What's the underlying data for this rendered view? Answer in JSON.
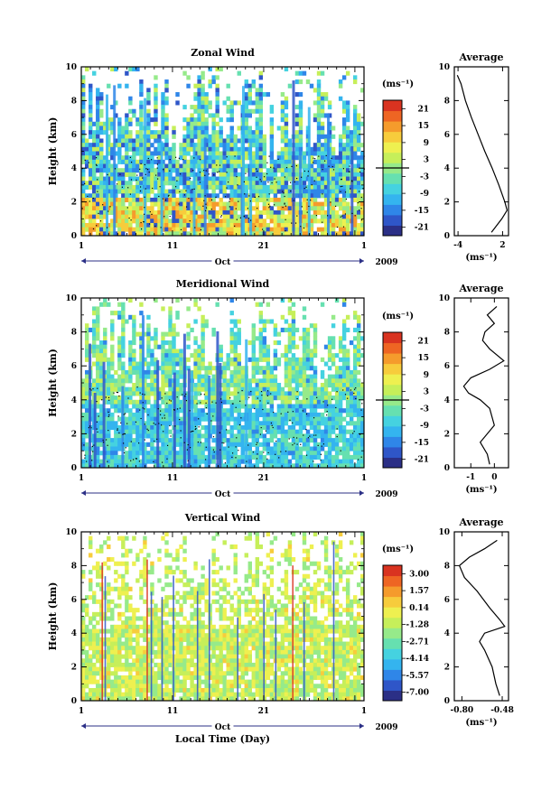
{
  "panels": [
    {
      "title": "Zonal Wind",
      "ylabel": "Height (km)",
      "yticks": [
        "0",
        "2",
        "4",
        "6",
        "8",
        "10"
      ],
      "xticks": [
        "1",
        "11",
        "21",
        "1"
      ],
      "month": "Oct",
      "year": "2009",
      "colorbar": {
        "unit": "(ms⁻¹)",
        "labels": [
          "21",
          "15",
          "9",
          "3",
          "-3",
          "-9",
          "-15",
          "-21"
        ],
        "zero_line": 0.5
      },
      "avg": {
        "title": "Average",
        "unit": "(ms⁻¹)",
        "xticks": [
          "-4",
          "2"
        ],
        "xlim": [
          -4.5,
          2.8
        ],
        "yticks": [
          "0",
          "2",
          "4",
          "6",
          "8",
          "10"
        ]
      }
    },
    {
      "title": "Meridional Wind",
      "ylabel": "Height (km)",
      "yticks": [
        "0",
        "2",
        "4",
        "6",
        "8",
        "10"
      ],
      "xticks": [
        "1",
        "11",
        "21",
        "1"
      ],
      "month": "Oct",
      "year": "2009",
      "colorbar": {
        "unit": "(ms⁻¹)",
        "labels": [
          "21",
          "15",
          "9",
          "3",
          "-3",
          "-9",
          "-15",
          "-21"
        ],
        "zero_line": 0.5
      },
      "avg": {
        "title": "Average",
        "unit": "(ms⁻¹)",
        "xticks": [
          "-1",
          "0"
        ],
        "xlim": [
          -1.7,
          0.6
        ],
        "yticks": [
          "0",
          "2",
          "4",
          "6",
          "8",
          "10"
        ]
      }
    },
    {
      "title": "Vertical Wind",
      "ylabel": "Height (km)",
      "yticks": [
        "0",
        "2",
        "4",
        "6",
        "8",
        "10"
      ],
      "xticks": [
        "1",
        "11",
        "21",
        "1"
      ],
      "month": "Oct",
      "year": "2009",
      "xlabel": "Local Time (Day)",
      "colorbar": {
        "unit": "(ms⁻¹)",
        "labels": [
          "3.00",
          "1.57",
          "0.14",
          "-1.28",
          "-2.71",
          "-4.14",
          "-5.57",
          "-7.00"
        ],
        "zero_line": null
      },
      "avg": {
        "title": "Average",
        "unit": "(ms⁻¹)",
        "xticks": [
          "-0.80",
          "-0.48"
        ],
        "xlim": [
          -0.86,
          -0.43
        ],
        "yticks": [
          "0",
          "2",
          "4",
          "6",
          "8",
          "10"
        ]
      }
    }
  ],
  "chart_data": [
    {
      "type": "heatmap",
      "title": "Zonal Wind",
      "ylabel": "Height (km)",
      "ylim": [
        0,
        10
      ],
      "xlim": [
        "1 Oct 2009",
        "1 Nov 2009"
      ],
      "colorbar_unit": "ms-1",
      "colorbar_ticks": [
        21,
        15,
        9,
        3,
        -3,
        -9,
        -15,
        -21
      ]
    },
    {
      "type": "line",
      "title": "Average",
      "xlabel": "(ms-1)",
      "ylim": [
        0,
        10
      ],
      "xlim": [
        -4.5,
        2.8
      ],
      "series": [
        {
          "x": [
            -4.1,
            -3.6,
            -3.0,
            -2.2,
            -1.3,
            -0.4,
            0.6,
            1.5,
            2.3,
            2.6,
            1.9,
            0.5
          ],
          "y": [
            9.5,
            9.0,
            8.0,
            7.0,
            6.0,
            5.0,
            4.0,
            3.0,
            2.0,
            1.5,
            1.0,
            0.2
          ]
        }
      ]
    },
    {
      "type": "heatmap",
      "title": "Meridional Wind",
      "ylabel": "Height (km)",
      "ylim": [
        0,
        10
      ],
      "xlim": [
        "1 Oct 2009",
        "1 Nov 2009"
      ],
      "colorbar_unit": "ms-1",
      "colorbar_ticks": [
        21,
        15,
        9,
        3,
        -3,
        -9,
        -15,
        -21
      ]
    },
    {
      "type": "line",
      "title": "Average",
      "xlabel": "(ms-1)",
      "ylim": [
        0,
        10
      ],
      "xlim": [
        -1.7,
        0.6
      ],
      "series": [
        {
          "x": [
            0.1,
            -0.3,
            0.0,
            -0.4,
            -0.5,
            -0.2,
            0.4,
            -0.2,
            -1.0,
            -1.3,
            -1.1,
            -0.6,
            -0.2,
            0.0,
            -0.6,
            -0.3,
            -0.2
          ],
          "y": [
            9.5,
            9.0,
            8.5,
            8.0,
            7.5,
            7.0,
            6.3,
            5.8,
            5.3,
            4.8,
            4.4,
            4.0,
            3.5,
            2.5,
            1.5,
            0.8,
            0.2
          ]
        }
      ]
    },
    {
      "type": "heatmap",
      "title": "Vertical Wind",
      "xlabel": "Local Time (Day)",
      "ylabel": "Height (km)",
      "ylim": [
        0,
        10
      ],
      "xlim": [
        "1 Oct 2009",
        "1 Nov 2009"
      ],
      "colorbar_unit": "ms-1",
      "colorbar_ticks": [
        3.0,
        1.57,
        0.14,
        -1.28,
        -2.71,
        -4.14,
        -5.57,
        -7.0
      ]
    },
    {
      "type": "line",
      "title": "Average",
      "xlabel": "(ms-1)",
      "ylim": [
        0,
        10
      ],
      "xlim": [
        -0.86,
        -0.43
      ],
      "series": [
        {
          "x": [
            -0.52,
            -0.62,
            -0.74,
            -0.82,
            -0.78,
            -0.68,
            -0.58,
            -0.5,
            -0.46,
            -0.62,
            -0.66,
            -0.62,
            -0.56,
            -0.53,
            -0.5
          ],
          "y": [
            9.5,
            9.0,
            8.5,
            8.0,
            7.3,
            6.5,
            5.5,
            4.8,
            4.4,
            4.0,
            3.5,
            3.0,
            2.0,
            1.0,
            0.3
          ]
        }
      ]
    }
  ]
}
